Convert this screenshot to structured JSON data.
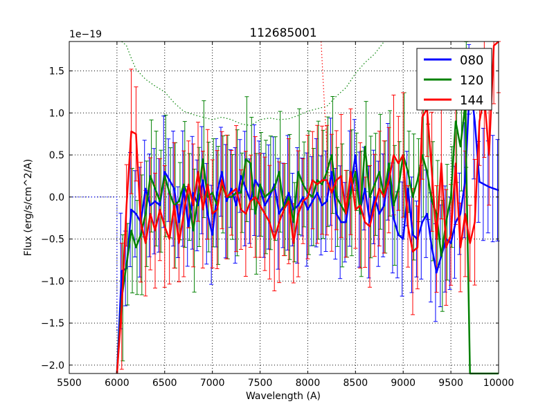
{
  "chart_data": {
    "type": "line",
    "title": "112685001",
    "xlabel": "Wavelength (A)",
    "ylabel": "Flux (erg/s/cm^2/A)",
    "y_offset_label": "1e−19",
    "xlim": [
      5500,
      10000
    ],
    "ylim": [
      -2.1,
      1.85
    ],
    "x_ticks": [
      5500,
      6000,
      6500,
      7000,
      7500,
      8000,
      8500,
      9000,
      9500,
      10000
    ],
    "y_ticks": [
      -2.0,
      -1.5,
      -1.0,
      -0.5,
      0.0,
      0.5,
      1.0,
      1.5
    ],
    "grid": true,
    "legend_position": "top-right",
    "series": [
      {
        "name": "080",
        "color": "#0000ff",
        "x": [
          6000,
          6050,
          6100,
          6150,
          6200,
          6250,
          6300,
          6350,
          6400,
          6450,
          6500,
          6550,
          6600,
          6650,
          6700,
          6750,
          6800,
          6850,
          6900,
          6950,
          7000,
          7050,
          7100,
          7150,
          7200,
          7250,
          7300,
          7350,
          7400,
          7450,
          7500,
          7550,
          7600,
          7650,
          7700,
          7750,
          7800,
          7850,
          7900,
          7950,
          8000,
          8050,
          8100,
          8150,
          8200,
          8250,
          8300,
          8350,
          8400,
          8450,
          8500,
          8550,
          8600,
          8650,
          8700,
          8750,
          8800,
          8850,
          8900,
          8950,
          9000,
          9050,
          9100,
          9150,
          9200,
          9250,
          9300,
          9350,
          9400,
          9450,
          9500,
          9550,
          9600,
          9650,
          9700,
          9750,
          9800,
          9850,
          9900,
          9950,
          10000
        ],
        "y": [
          -2.1,
          -0.88,
          -0.85,
          -0.15,
          -0.2,
          -0.3,
          0.1,
          -0.1,
          -0.05,
          -0.1,
          0.3,
          0.2,
          0.1,
          -0.3,
          0.1,
          -0.35,
          0.05,
          -0.1,
          0.2,
          -0.2,
          -0.45,
          0.05,
          0.3,
          -0.05,
          0.1,
          -0.1,
          0.25,
          0.1,
          -0.05,
          0.2,
          0.1,
          -0.1,
          0.0,
          0.15,
          -0.2,
          -0.1,
          0.05,
          -0.15,
          -0.1,
          0.0,
          -0.15,
          -0.05,
          0.05,
          -0.1,
          -0.05,
          0.3,
          -0.2,
          -0.3,
          -0.3,
          0.1,
          0.5,
          -0.15,
          0.1,
          -0.3,
          0.0,
          -0.2,
          -0.1,
          0.3,
          -0.25,
          -0.45,
          -0.5,
          0.1,
          -0.45,
          -0.5,
          -0.3,
          -0.2,
          -0.6,
          -0.9,
          -0.7,
          -0.5,
          -0.55,
          -0.3,
          -0.2,
          0.2,
          1.4,
          0.9,
          0.18,
          0.15,
          0.12,
          0.1,
          0.08
        ],
        "err": 0.55
      },
      {
        "name": "120",
        "color": "#008000",
        "x": [
          6000,
          6050,
          6100,
          6150,
          6200,
          6250,
          6300,
          6350,
          6400,
          6450,
          6500,
          6550,
          6600,
          6650,
          6700,
          6750,
          6800,
          6850,
          6900,
          6950,
          7000,
          7050,
          7100,
          7150,
          7200,
          7250,
          7300,
          7350,
          7400,
          7450,
          7500,
          7550,
          7600,
          7650,
          7700,
          7750,
          7800,
          7850,
          7900,
          7950,
          8000,
          8050,
          8100,
          8150,
          8200,
          8250,
          8300,
          8350,
          8400,
          8450,
          8500,
          8550,
          8600,
          8650,
          8700,
          8750,
          8800,
          8850,
          8900,
          8950,
          9000,
          9050,
          9100,
          9150,
          9200,
          9250,
          9300,
          9350,
          9400,
          9450,
          9500,
          9550,
          9600,
          9650,
          9700,
          9750,
          9800,
          9850,
          9900,
          9950,
          10000
        ],
        "y": [
          -2.1,
          -1.2,
          -0.8,
          -0.4,
          -0.6,
          -0.45,
          -0.2,
          0.25,
          0.1,
          -0.05,
          0.25,
          0.05,
          -0.1,
          -0.05,
          0.15,
          0.0,
          -0.4,
          0.0,
          0.45,
          0.0,
          0.05,
          -0.1,
          0.15,
          0.0,
          0.0,
          0.05,
          0.05,
          0.45,
          0.4,
          -0.2,
          0.15,
          0.0,
          0.05,
          0.1,
          0.3,
          -0.15,
          0.0,
          -0.3,
          0.3,
          0.15,
          0.05,
          0.0,
          0.2,
          0.15,
          0.3,
          0.5,
          0.0,
          -0.1,
          -0.2,
          0.05,
          0.3,
          -0.2,
          0.6,
          0.0,
          0.15,
          0.3,
          0.0,
          0.4,
          -0.1,
          0.1,
          0.5,
          0.3,
          0.0,
          0.2,
          0.5,
          0.3,
          -0.05,
          -0.2,
          -0.7,
          -0.3,
          0.0,
          0.9,
          0.6,
          1.1,
          -2.1,
          -2.1,
          -2.1,
          -2.1,
          -2.1,
          -2.1,
          -2.1
        ],
        "err": 0.6
      },
      {
        "name": "144",
        "color": "#ff0000",
        "x": [
          6000,
          6050,
          6100,
          6150,
          6200,
          6250,
          6300,
          6350,
          6400,
          6450,
          6500,
          6550,
          6600,
          6650,
          6700,
          6750,
          6800,
          6850,
          6900,
          6950,
          7000,
          7050,
          7100,
          7150,
          7200,
          7250,
          7300,
          7350,
          7400,
          7450,
          7500,
          7550,
          7600,
          7650,
          7700,
          7750,
          7800,
          7850,
          7900,
          7950,
          8000,
          8050,
          8100,
          8150,
          8200,
          8250,
          8300,
          8350,
          8400,
          8450,
          8500,
          8550,
          8600,
          8650,
          8700,
          8750,
          8800,
          8850,
          8900,
          8950,
          9000,
          9050,
          9100,
          9150,
          9200,
          9250,
          9300,
          9350,
          9400,
          9450,
          9500,
          9550,
          9600,
          9650,
          9700,
          9750,
          9800,
          9850,
          9900,
          9950,
          10000
        ],
        "y": [
          -2.1,
          -1.3,
          -0.1,
          0.78,
          0.75,
          -0.3,
          -0.55,
          -0.2,
          -0.4,
          -0.15,
          -0.35,
          -0.5,
          -0.1,
          -0.55,
          -0.2,
          0.15,
          -0.1,
          0.3,
          -0.15,
          0.15,
          -0.2,
          -0.15,
          0.2,
          0.0,
          0.05,
          0.1,
          -0.15,
          -0.2,
          -0.05,
          0.0,
          -0.1,
          -0.2,
          -0.3,
          -0.5,
          -0.3,
          -0.15,
          -0.05,
          -0.55,
          -0.2,
          -0.05,
          0.0,
          0.2,
          0.15,
          0.2,
          0.2,
          0.05,
          0.2,
          0.25,
          -0.2,
          0.3,
          -0.15,
          -0.1,
          -0.3,
          -0.35,
          -0.1,
          0.1,
          0.0,
          0.2,
          0.5,
          0.4,
          0.5,
          -0.35,
          -0.65,
          -0.6,
          0.95,
          1.05,
          0.3,
          -0.5,
          0.4,
          -0.6,
          -0.45,
          0.4,
          -0.6,
          -0.2,
          -0.55,
          -0.3,
          0.9,
          1.2,
          0.5,
          1.8,
          1.9
        ],
        "err": 0.6
      }
    ],
    "reference_lines": [
      {
        "series": "080",
        "color": "#0000ff",
        "style": "dotted",
        "x": [
          5500,
          6000,
          6000
        ],
        "y": [
          0.0,
          0.0,
          -1.6
        ]
      },
      {
        "series": "120",
        "color": "#008000",
        "style": "dotted",
        "x": [
          6050,
          6100,
          6150,
          6200,
          6300,
          6400,
          6500,
          6600,
          6700,
          6800,
          6900,
          7000,
          7100,
          7200,
          7300,
          7400,
          7500,
          7600,
          7700,
          7800,
          7900,
          8000,
          8100,
          8200,
          8300,
          8400,
          8500,
          8600,
          8700,
          8800
        ],
        "y": [
          1.9,
          1.8,
          1.65,
          1.52,
          1.4,
          1.32,
          1.25,
          1.12,
          1.02,
          0.98,
          0.95,
          0.92,
          0.95,
          0.92,
          0.87,
          0.85,
          0.92,
          0.94,
          0.92,
          0.93,
          0.97,
          1.02,
          1.05,
          1.08,
          1.2,
          1.3,
          1.47,
          1.6,
          1.7,
          1.9
        ]
      },
      {
        "series": "144",
        "color": "#ff0000",
        "style": "dotted",
        "x": [
          8140,
          8160,
          8180,
          8200,
          8220,
          8240
        ],
        "y": [
          1.9,
          1.4,
          1.0,
          0.6,
          0.3,
          0.15
        ]
      }
    ]
  }
}
